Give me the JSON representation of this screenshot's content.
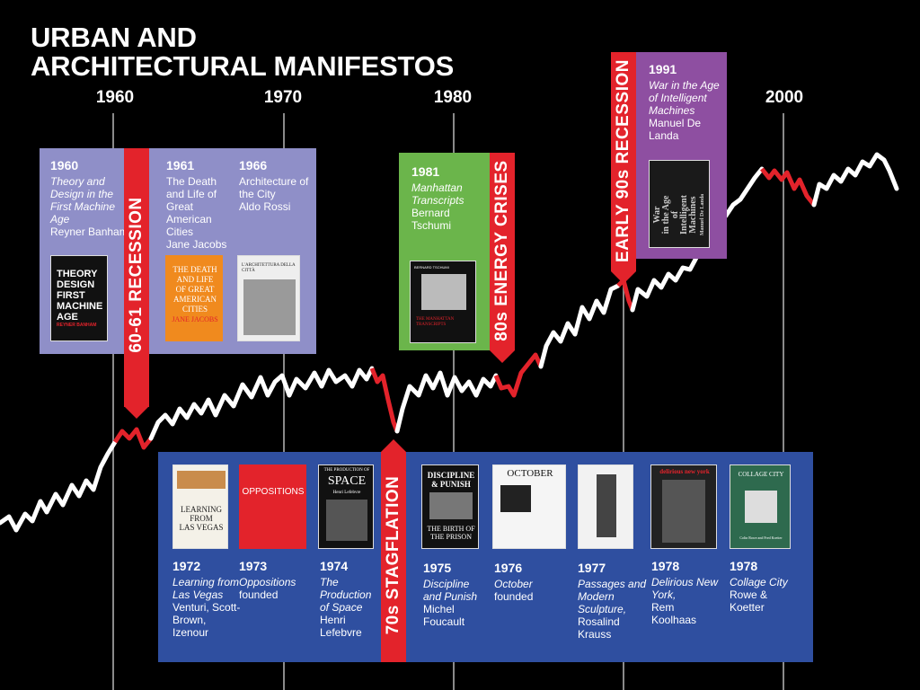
{
  "title": [
    "URBAN AND",
    "ARCHITECTURAL MANIFESTOS"
  ],
  "years": [
    "1960",
    "1970",
    "1980",
    "2000"
  ],
  "recessions": {
    "r1": "60-61 RECESSION",
    "r2": "70s STAGFLATION",
    "r3": "80s ENERGY CRISES",
    "r4": "EARLY 90s RECESSION"
  },
  "entries": {
    "e1960": {
      "year": "1960",
      "title": "Theory and Design in the First Machine Age",
      "author": "Reyner Banham"
    },
    "e1961": {
      "year": "1961",
      "title": "The Death and Life of Great American Cities",
      "author": "Jane Jacobs"
    },
    "e1966": {
      "year": "1966",
      "title": "Architecture of the City",
      "author": "Aldo Rossi"
    },
    "e1981": {
      "year": "1981",
      "title": "Manhattan Transcripts",
      "author": "Bernard Tschumi"
    },
    "e1991": {
      "year": "1991",
      "title": "War in the Age of Intelligent Machines",
      "author": "Manuel De Landa"
    },
    "e1972": {
      "year": "1972",
      "title": "Learning from Las Vegas",
      "author": "Venturi, Scott-Brown, Izenour"
    },
    "e1973": {
      "year": "1973",
      "title": "Oppositions",
      "author": "founded"
    },
    "e1974": {
      "year": "1974",
      "title": "The Production of Space",
      "author": "Henri Lefebvre"
    },
    "e1975": {
      "year": "1975",
      "title": "Discipline and Punish",
      "author": "Michel Foucault"
    },
    "e1976": {
      "year": "1976",
      "title": "October",
      "author": "founded"
    },
    "e1977": {
      "year": "1977",
      "title": "Passages and Modern Sculpture,",
      "author": "Rosalind Krauss"
    },
    "e1978a": {
      "year": "1978",
      "title": "Delirious New York,",
      "author": "Rem Koolhaas"
    },
    "e1978b": {
      "year": "1978",
      "title": "Collage City",
      "author": "Rowe & Koetter"
    }
  },
  "covers": {
    "banham": [
      "THEORY",
      "DESIGN",
      "FIRST",
      "MACHINE",
      "AGE",
      "REYNER BANHAM"
    ],
    "jacobs": [
      "THE DEATH",
      "AND LIFE",
      "OF GREAT",
      "AMERICAN",
      "CITIES",
      "JANE JACOBS"
    ],
    "rossi": "L'ARCHITETTURA DELLA CITTÀ",
    "tschumi": [
      "BERNARD TSCHUMI",
      "THE MANHATTAN TRANSCRIPTS"
    ],
    "delanda": [
      "War",
      "in the Age",
      "of",
      "Intelligent",
      "Machines",
      "Manuel De Landa"
    ],
    "vegas": [
      "LEARNING",
      "FROM",
      "LAS VEGAS"
    ],
    "oppositions": "OPPOSITIONS",
    "lefebvre": [
      "THE PRODUCTION OF",
      "SPACE",
      "Henri Lefebvre"
    ],
    "foucault": [
      "DISCIPLINE",
      "& PUNISH",
      "THE BIRTH OF",
      "THE PRISON"
    ],
    "october": "OCTOBER",
    "deliriousNY": "delirious new york",
    "collage": [
      "COLLAGE CITY",
      "Colin Rowe and Fred Koetter"
    ]
  },
  "colors": {
    "background": "#000000",
    "line": "#ffffff",
    "recession": "#e3232b",
    "panel_top_left": "#8f8fc8",
    "panel_1981": "#6bb54b",
    "panel_1991": "#8e4fa1",
    "panel_bottom": "#2f4fa0"
  }
}
